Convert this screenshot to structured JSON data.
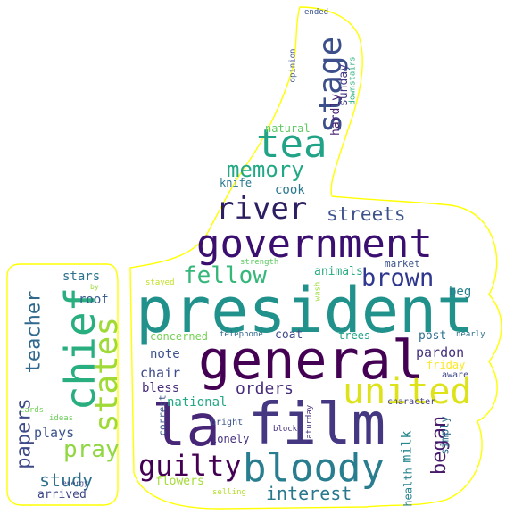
{
  "words": [
    {
      "text": "president",
      "color": "#21918c"
    },
    {
      "text": "general",
      "color": "#440154"
    },
    {
      "text": "government",
      "color": "#3b0f70"
    },
    {
      "text": "la",
      "color": "#482677"
    },
    {
      "text": "film",
      "color": "#453781"
    },
    {
      "text": "bloody",
      "color": "#287d8e"
    },
    {
      "text": "united",
      "color": "#dde318"
    },
    {
      "text": "chief",
      "color": "#29af7f"
    },
    {
      "text": "states",
      "color": "#a0da39"
    },
    {
      "text": "stage",
      "color": "#3c4f8a"
    },
    {
      "text": "tea",
      "color": "#20a386"
    },
    {
      "text": "river",
      "color": "#2d1e61"
    },
    {
      "text": "memory",
      "color": "#22a884"
    },
    {
      "text": "fellow",
      "color": "#35b779"
    },
    {
      "text": "brown",
      "color": "#30378f"
    },
    {
      "text": "guilty",
      "color": "#440154"
    },
    {
      "text": "pray",
      "color": "#90d743"
    },
    {
      "text": "teacher",
      "color": "#31688e"
    },
    {
      "text": "papers",
      "color": "#3e4a89"
    },
    {
      "text": "streets",
      "color": "#3b528b"
    },
    {
      "text": "interest",
      "color": "#2a788e"
    },
    {
      "text": "study",
      "color": "#2d708e"
    },
    {
      "text": "orders",
      "color": "#472d7b"
    },
    {
      "text": "began",
      "color": "#481a6c"
    },
    {
      "text": "note",
      "color": "#3b528b"
    },
    {
      "text": "chair",
      "color": "#3e4c8a"
    },
    {
      "text": "bless",
      "color": "#472d7b"
    },
    {
      "text": "national",
      "color": "#22a884"
    },
    {
      "text": "plays",
      "color": "#3b528b"
    },
    {
      "text": "stars",
      "color": "#2c728e"
    },
    {
      "text": "roof",
      "color": "#375a8c"
    },
    {
      "text": "flowers",
      "color": "#a5db36"
    },
    {
      "text": "pardon",
      "color": "#46327e"
    },
    {
      "text": "post",
      "color": "#2d708e"
    },
    {
      "text": "animals",
      "color": "#27ad81"
    },
    {
      "text": "beg",
      "color": "#26818e"
    },
    {
      "text": "milk",
      "color": "#24878e"
    },
    {
      "text": "cook",
      "color": "#2a788e"
    },
    {
      "text": "knife",
      "color": "#2a788e"
    },
    {
      "text": "natural",
      "color": "#5ec962"
    },
    {
      "text": "hardly",
      "color": "#482173"
    },
    {
      "text": "sunday",
      "color": "#443983"
    },
    {
      "text": "coat",
      "color": "#3e4c8a"
    },
    {
      "text": "trees",
      "color": "#20a386"
    },
    {
      "text": "concerned",
      "color": "#75d054"
    },
    {
      "text": "friday",
      "color": "#fde725"
    },
    {
      "text": "simply",
      "color": "#2e6f8e"
    },
    {
      "text": "lonely",
      "color": "#46307e"
    },
    {
      "text": "correct",
      "color": "#3b528b"
    },
    {
      "text": "health",
      "color": "#26828e"
    },
    {
      "text": "arrived",
      "color": "#3f4788"
    },
    {
      "text": "market",
      "color": "#3b528b"
    },
    {
      "text": "aware",
      "color": "#3f4788"
    },
    {
      "text": "character",
      "color": "#433e85"
    },
    {
      "text": "bright",
      "color": "#3b528b"
    },
    {
      "text": "telephone",
      "color": "#31688e"
    },
    {
      "text": "strength",
      "color": "#5ec962"
    },
    {
      "text": "nearly",
      "color": "#2d708e"
    },
    {
      "text": "saturday",
      "color": "#472c7a"
    },
    {
      "text": "block",
      "color": "#46307e"
    },
    {
      "text": "wash",
      "color": "#a0da39"
    },
    {
      "text": "stayed",
      "color": "#c2df23"
    },
    {
      "text": "selling",
      "color": "#b5de2b"
    },
    {
      "text": "opinion",
      "color": "#3b528b"
    },
    {
      "text": "downstairs",
      "color": "#2ab07f"
    },
    {
      "text": "ended",
      "color": "#3b528b"
    },
    {
      "text": "cards",
      "color": "#73d056"
    },
    {
      "text": "ideas",
      "color": "#6ccd5a"
    },
    {
      "text": "energy",
      "color": "#3e4989"
    },
    {
      "text": "by",
      "color": "#9bd93c"
    }
  ],
  "outline_color": "#ffff00"
}
